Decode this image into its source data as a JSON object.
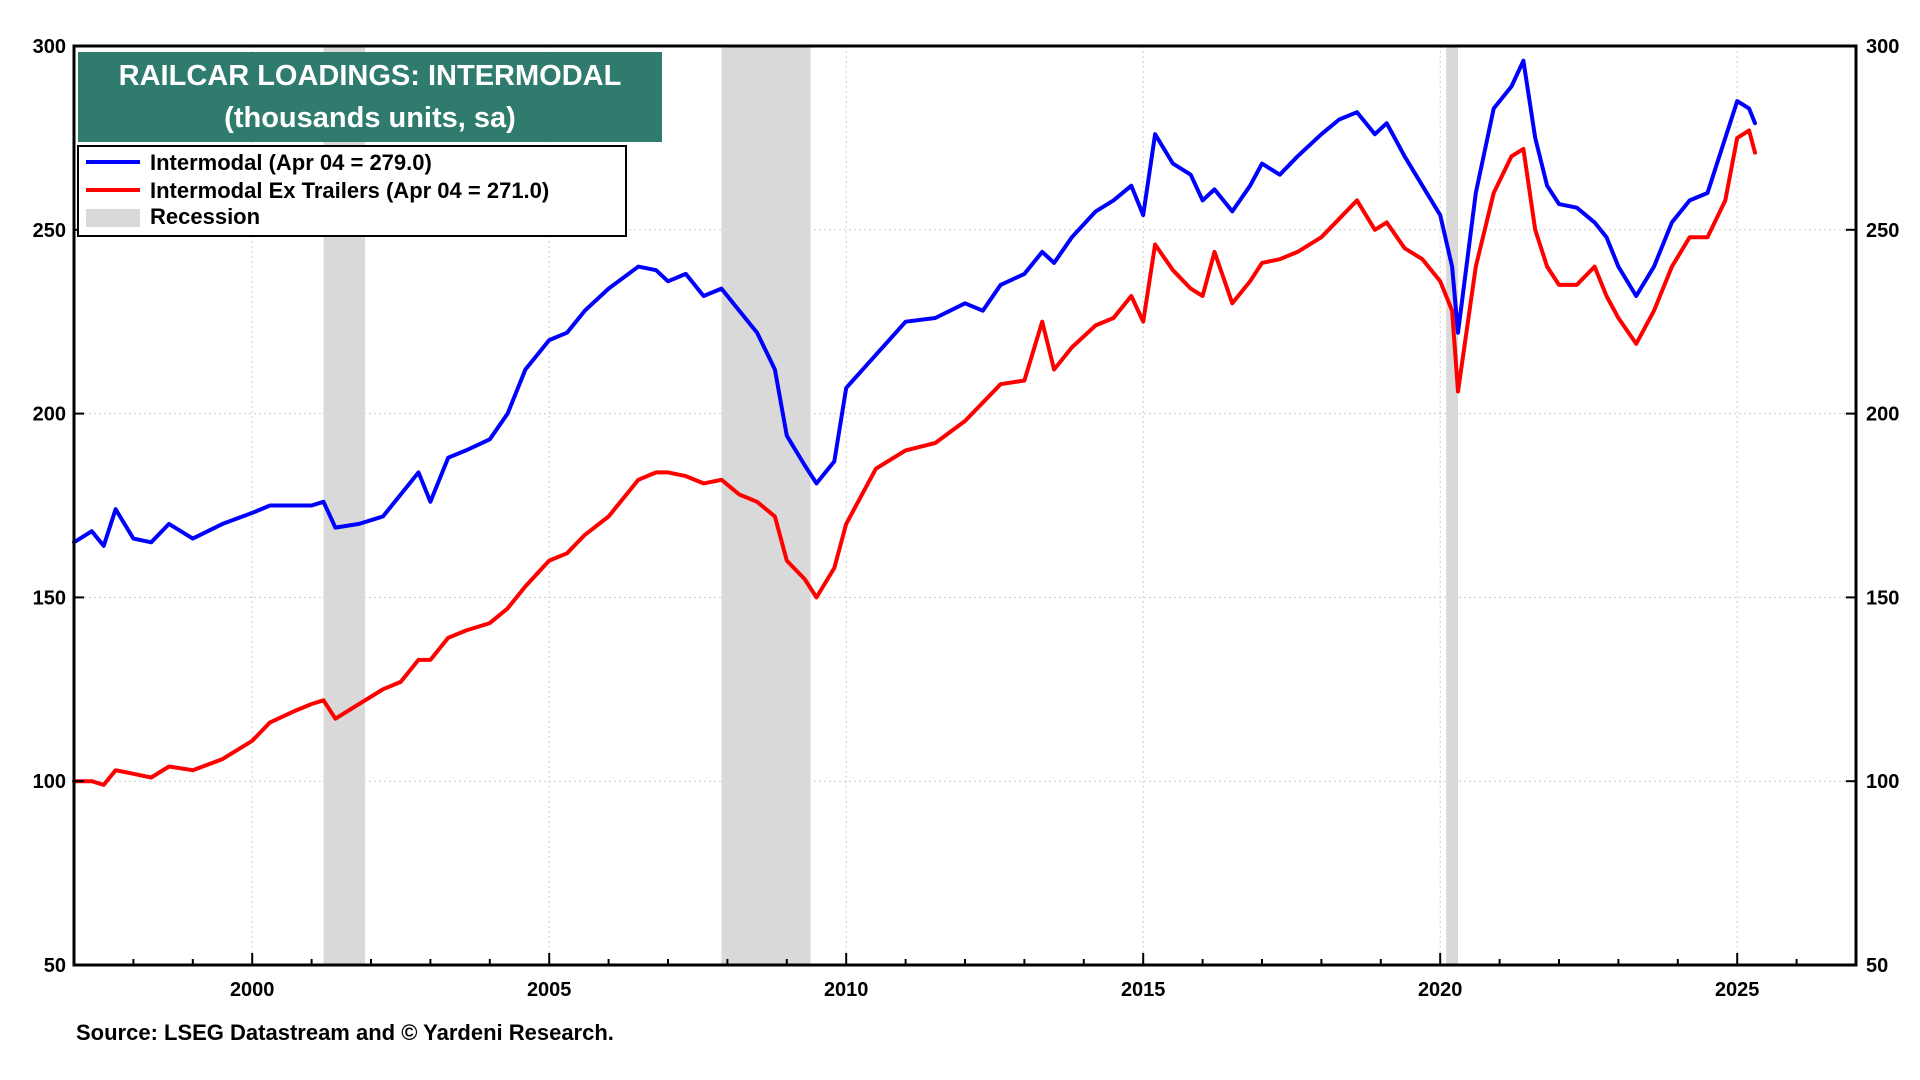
{
  "chart_data": {
    "type": "line",
    "title": "RAILCAR LOADINGS: INTERMODAL",
    "subtitle": "(thousands units, sa)",
    "source": "Source: LSEG Datastream and © Yardeni Research.",
    "xlim": [
      1997.0,
      2027.0
    ],
    "ylim": [
      50,
      300
    ],
    "x_ticks": [
      2000,
      2005,
      2010,
      2015,
      2020,
      2025
    ],
    "y_ticks": [
      50,
      100,
      150,
      200,
      250,
      300
    ],
    "grid": true,
    "legend_position": "top-left",
    "title_box_color": "#2f7b6d",
    "legend": [
      {
        "label": "Intermodal (Apr 04 = 279.0)",
        "color": "#0000ff",
        "kind": "line"
      },
      {
        "label": "Intermodal Ex Trailers (Apr 04 = 271.0)",
        "color": "#ff0000",
        "kind": "line"
      },
      {
        "label": "Recession",
        "color": "#d9d9d9",
        "kind": "area"
      }
    ],
    "recessions": [
      [
        2001.2,
        2001.9
      ],
      [
        2007.9,
        2009.4
      ],
      [
        2020.1,
        2020.3
      ]
    ],
    "series": [
      {
        "name": "Intermodal",
        "color": "#0000ff",
        "points": [
          [
            1997.0,
            165
          ],
          [
            1997.3,
            168
          ],
          [
            1997.5,
            164
          ],
          [
            1997.7,
            174
          ],
          [
            1998.0,
            166
          ],
          [
            1998.3,
            165
          ],
          [
            1998.6,
            170
          ],
          [
            1999.0,
            166
          ],
          [
            1999.5,
            170
          ],
          [
            2000.0,
            173
          ],
          [
            2000.3,
            175
          ],
          [
            2000.7,
            175
          ],
          [
            2001.0,
            175
          ],
          [
            2001.2,
            176
          ],
          [
            2001.4,
            169
          ],
          [
            2001.8,
            170
          ],
          [
            2002.2,
            172
          ],
          [
            2002.5,
            178
          ],
          [
            2002.8,
            184
          ],
          [
            2003.0,
            176
          ],
          [
            2003.3,
            188
          ],
          [
            2003.6,
            190
          ],
          [
            2004.0,
            193
          ],
          [
            2004.3,
            200
          ],
          [
            2004.6,
            212
          ],
          [
            2005.0,
            220
          ],
          [
            2005.3,
            222
          ],
          [
            2005.6,
            228
          ],
          [
            2006.0,
            234
          ],
          [
            2006.5,
            240
          ],
          [
            2006.8,
            239
          ],
          [
            2007.0,
            236
          ],
          [
            2007.3,
            238
          ],
          [
            2007.6,
            232
          ],
          [
            2007.9,
            234
          ],
          [
            2008.2,
            228
          ],
          [
            2008.5,
            222
          ],
          [
            2008.8,
            212
          ],
          [
            2009.0,
            194
          ],
          [
            2009.3,
            186
          ],
          [
            2009.5,
            181
          ],
          [
            2009.8,
            187
          ],
          [
            2010.0,
            207
          ],
          [
            2010.5,
            216
          ],
          [
            2011.0,
            225
          ],
          [
            2011.5,
            226
          ],
          [
            2012.0,
            230
          ],
          [
            2012.3,
            228
          ],
          [
            2012.6,
            235
          ],
          [
            2013.0,
            238
          ],
          [
            2013.3,
            244
          ],
          [
            2013.5,
            241
          ],
          [
            2013.8,
            248
          ],
          [
            2014.2,
            255
          ],
          [
            2014.5,
            258
          ],
          [
            2014.8,
            262
          ],
          [
            2015.0,
            254
          ],
          [
            2015.2,
            276
          ],
          [
            2015.5,
            268
          ],
          [
            2015.8,
            265
          ],
          [
            2016.0,
            258
          ],
          [
            2016.2,
            261
          ],
          [
            2016.5,
            255
          ],
          [
            2016.8,
            262
          ],
          [
            2017.0,
            268
          ],
          [
            2017.3,
            265
          ],
          [
            2017.6,
            270
          ],
          [
            2018.0,
            276
          ],
          [
            2018.3,
            280
          ],
          [
            2018.6,
            282
          ],
          [
            2018.9,
            276
          ],
          [
            2019.1,
            279
          ],
          [
            2019.4,
            270
          ],
          [
            2019.7,
            262
          ],
          [
            2020.0,
            254
          ],
          [
            2020.2,
            240
          ],
          [
            2020.3,
            222
          ],
          [
            2020.6,
            260
          ],
          [
            2020.9,
            283
          ],
          [
            2021.2,
            289
          ],
          [
            2021.4,
            296
          ],
          [
            2021.6,
            275
          ],
          [
            2021.8,
            262
          ],
          [
            2022.0,
            257
          ],
          [
            2022.3,
            256
          ],
          [
            2022.6,
            252
          ],
          [
            2022.8,
            248
          ],
          [
            2023.0,
            240
          ],
          [
            2023.3,
            232
          ],
          [
            2023.6,
            240
          ],
          [
            2023.9,
            252
          ],
          [
            2024.2,
            258
          ],
          [
            2024.5,
            260
          ],
          [
            2024.8,
            275
          ],
          [
            2025.0,
            285
          ],
          [
            2025.2,
            283
          ],
          [
            2025.3,
            279
          ]
        ]
      },
      {
        "name": "Intermodal Ex Trailers",
        "color": "#ff0000",
        "points": [
          [
            1997.0,
            100
          ],
          [
            1997.3,
            100
          ],
          [
            1997.5,
            99
          ],
          [
            1997.7,
            103
          ],
          [
            1998.0,
            102
          ],
          [
            1998.3,
            101
          ],
          [
            1998.6,
            104
          ],
          [
            1999.0,
            103
          ],
          [
            1999.5,
            106
          ],
          [
            2000.0,
            111
          ],
          [
            2000.3,
            116
          ],
          [
            2000.7,
            119
          ],
          [
            2001.0,
            121
          ],
          [
            2001.2,
            122
          ],
          [
            2001.4,
            117
          ],
          [
            2001.8,
            121
          ],
          [
            2002.2,
            125
          ],
          [
            2002.5,
            127
          ],
          [
            2002.8,
            133
          ],
          [
            2003.0,
            133
          ],
          [
            2003.3,
            139
          ],
          [
            2003.6,
            141
          ],
          [
            2004.0,
            143
          ],
          [
            2004.3,
            147
          ],
          [
            2004.6,
            153
          ],
          [
            2005.0,
            160
          ],
          [
            2005.3,
            162
          ],
          [
            2005.6,
            167
          ],
          [
            2006.0,
            172
          ],
          [
            2006.5,
            182
          ],
          [
            2006.8,
            184
          ],
          [
            2007.0,
            184
          ],
          [
            2007.3,
            183
          ],
          [
            2007.6,
            181
          ],
          [
            2007.9,
            182
          ],
          [
            2008.2,
            178
          ],
          [
            2008.5,
            176
          ],
          [
            2008.8,
            172
          ],
          [
            2009.0,
            160
          ],
          [
            2009.3,
            155
          ],
          [
            2009.5,
            150
          ],
          [
            2009.8,
            158
          ],
          [
            2010.0,
            170
          ],
          [
            2010.5,
            185
          ],
          [
            2011.0,
            190
          ],
          [
            2011.5,
            192
          ],
          [
            2012.0,
            198
          ],
          [
            2012.3,
            203
          ],
          [
            2012.6,
            208
          ],
          [
            2013.0,
            209
          ],
          [
            2013.3,
            225
          ],
          [
            2013.5,
            212
          ],
          [
            2013.8,
            218
          ],
          [
            2014.2,
            224
          ],
          [
            2014.5,
            226
          ],
          [
            2014.8,
            232
          ],
          [
            2015.0,
            225
          ],
          [
            2015.2,
            246
          ],
          [
            2015.5,
            239
          ],
          [
            2015.8,
            234
          ],
          [
            2016.0,
            232
          ],
          [
            2016.2,
            244
          ],
          [
            2016.5,
            230
          ],
          [
            2016.8,
            236
          ],
          [
            2017.0,
            241
          ],
          [
            2017.3,
            242
          ],
          [
            2017.6,
            244
          ],
          [
            2018.0,
            248
          ],
          [
            2018.3,
            253
          ],
          [
            2018.6,
            258
          ],
          [
            2018.9,
            250
          ],
          [
            2019.1,
            252
          ],
          [
            2019.4,
            245
          ],
          [
            2019.7,
            242
          ],
          [
            2020.0,
            236
          ],
          [
            2020.2,
            228
          ],
          [
            2020.3,
            206
          ],
          [
            2020.6,
            240
          ],
          [
            2020.9,
            260
          ],
          [
            2021.2,
            270
          ],
          [
            2021.4,
            272
          ],
          [
            2021.6,
            250
          ],
          [
            2021.8,
            240
          ],
          [
            2022.0,
            235
          ],
          [
            2022.3,
            235
          ],
          [
            2022.6,
            240
          ],
          [
            2022.8,
            232
          ],
          [
            2023.0,
            226
          ],
          [
            2023.3,
            219
          ],
          [
            2023.6,
            228
          ],
          [
            2023.9,
            240
          ],
          [
            2024.2,
            248
          ],
          [
            2024.5,
            248
          ],
          [
            2024.8,
            258
          ],
          [
            2025.0,
            275
          ],
          [
            2025.2,
            277
          ],
          [
            2025.3,
            271
          ]
        ]
      }
    ]
  }
}
